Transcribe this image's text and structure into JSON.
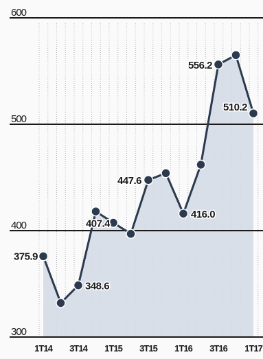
{
  "chart_data": {
    "type": "line",
    "title": "",
    "xlabel": "",
    "ylabel": "",
    "ylim": [
      300,
      600
    ],
    "y_ticks": [
      300,
      400,
      500,
      600
    ],
    "grid": true,
    "legend": "none",
    "x_tick_labels": [
      "1T14",
      "3T14",
      "1T15",
      "3T15",
      "1T16",
      "3T16",
      "1T17"
    ],
    "series": [
      {
        "values": [
          375.9,
          332,
          348.6,
          418,
          407.4,
          397,
          447.6,
          454,
          416.0,
          462,
          556.2,
          565,
          510.2
        ],
        "labels": [
          "375.9",
          "",
          "348.6",
          "",
          "407.4",
          "",
          "447.6",
          "",
          "416.0",
          "",
          "556.2",
          "",
          "510.2"
        ]
      }
    ],
    "colors": {
      "line": "#2b3a4f",
      "marker": "#2b3a4f",
      "fill": "#d5dbe6",
      "label_halo": "#ffffff"
    }
  }
}
